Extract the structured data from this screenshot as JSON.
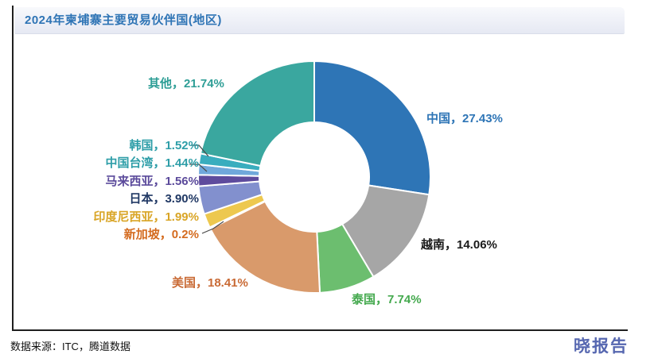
{
  "header": {
    "title": "2024年柬埔寨主要贸易伙伴国(地区)"
  },
  "footer": {
    "source": "数据来源：ITC，腾道数据",
    "brand": "晓报告"
  },
  "chart_data": {
    "type": "pie",
    "subtype": "donut",
    "title": "2024年柬埔寨主要贸易伙伴国(地区)",
    "start_angle_deg": 0,
    "direction": "clockwise",
    "categories": [
      "中国",
      "越南",
      "泰国",
      "美国",
      "新加坡",
      "印度尼西亚",
      "日本",
      "马来西亚",
      "中国台湾",
      "韩国",
      "其他"
    ],
    "values": [
      27.43,
      14.06,
      7.74,
      18.41,
      0.2,
      1.99,
      3.9,
      1.56,
      1.44,
      1.52,
      21.74
    ],
    "unit": "%",
    "display_labels": [
      "中国，27.43%",
      "越南，14.06%",
      "泰国，7.74%",
      "美国，18.41%",
      "新加坡，0.2%",
      "印度尼西亚，1.99%",
      "日本，3.90%",
      "马来西亚，1.56%",
      "中国台湾，1.44%",
      "韩国，1.52%",
      "其他，21.74%"
    ],
    "slice_names": [
      "china",
      "vietnam",
      "thailand",
      "usa",
      "singapore",
      "indonesia",
      "japan",
      "malaysia",
      "taiwan",
      "korea",
      "others"
    ],
    "colors": [
      "#2e75b6",
      "#a6a6a6",
      "#6cbe6f",
      "#d99a6b",
      "#e8833a",
      "#edc84f",
      "#8290ce",
      "#5e4b9d",
      "#70a8db",
      "#39adbe",
      "#3aa79f"
    ],
    "label_colors": [
      "#2e75b6",
      "#1a1a1a",
      "#44a94e",
      "#c96a35",
      "#d46b1f",
      "#d9a526",
      "#203864",
      "#5b4a9b",
      "#2e9ea8",
      "#2e9ea8",
      "#2e9e96"
    ],
    "legend": "none",
    "labels_position": "outside-callout"
  }
}
